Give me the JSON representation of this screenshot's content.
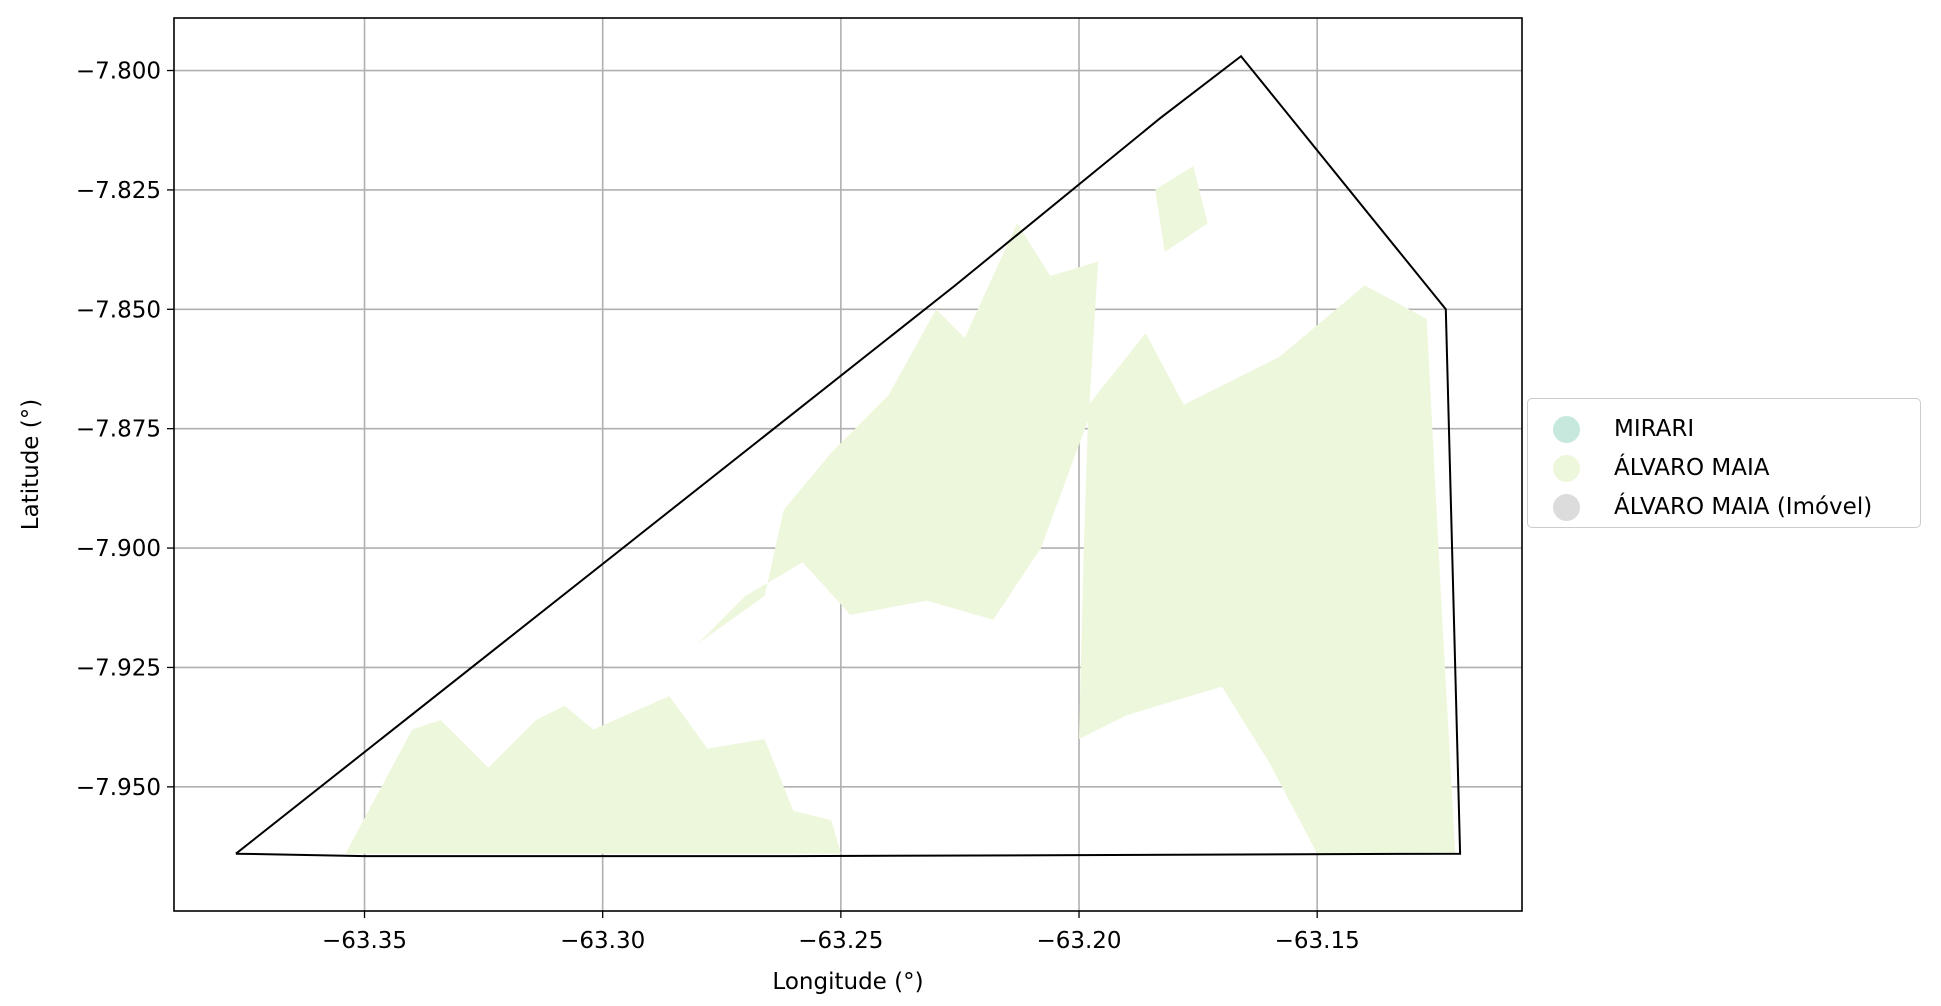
{
  "chart_data": {
    "type": "map",
    "xlabel": "Longitude (°)",
    "ylabel": "Latitude (°)",
    "xlim": [
      -63.39,
      -63.107
    ],
    "ylim": [
      -7.976,
      -7.789
    ],
    "x_ticks": [
      -63.35,
      -63.3,
      -63.25,
      -63.2,
      -63.15
    ],
    "x_tick_labels": [
      "−63.35",
      "−63.30",
      "−63.25",
      "−63.20",
      "−63.15"
    ],
    "y_ticks": [
      -7.8,
      -7.825,
      -7.85,
      -7.875,
      -7.9,
      -7.925,
      -7.95
    ],
    "y_tick_labels": [
      "−7.800",
      "−7.825",
      "−7.850",
      "−7.875",
      "−7.900",
      "−7.925",
      "−7.950"
    ],
    "grid": true,
    "legend_position": "center-right, outside plot",
    "legend": [
      {
        "label": "MIRARI",
        "color": "#c7e9dd"
      },
      {
        "label": "ÁLVARO MAIA",
        "color": "#edf7dc"
      },
      {
        "label": "ÁLVARO MAIA (Imóvel)",
        "color": "#dcdcdc"
      }
    ],
    "boundary": [
      [
        -63.377,
        -7.964
      ],
      [
        -63.35,
        -7.9645
      ],
      [
        -63.26,
        -7.9645
      ],
      [
        -63.2,
        -7.9643
      ],
      [
        -63.12,
        -7.964
      ],
      [
        -63.123,
        -7.85
      ],
      [
        -63.166,
        -7.797
      ],
      [
        -63.183,
        -7.81
      ],
      [
        -63.226,
        -7.845
      ],
      [
        -63.377,
        -7.964
      ]
    ],
    "regions": [
      [
        [
          -63.354,
          -7.964
        ],
        [
          -63.34,
          -7.938
        ],
        [
          -63.334,
          -7.936
        ],
        [
          -63.324,
          -7.946
        ],
        [
          -63.314,
          -7.936
        ],
        [
          -63.308,
          -7.933
        ],
        [
          -63.302,
          -7.938
        ],
        [
          -63.286,
          -7.931
        ],
        [
          -63.278,
          -7.942
        ],
        [
          -63.266,
          -7.94
        ],
        [
          -63.26,
          -7.955
        ],
        [
          -63.252,
          -7.957
        ],
        [
          -63.25,
          -7.964
        ]
      ],
      [
        [
          -63.28,
          -7.92
        ],
        [
          -63.266,
          -7.91
        ],
        [
          -63.262,
          -7.892
        ],
        [
          -63.252,
          -7.88
        ],
        [
          -63.24,
          -7.868
        ],
        [
          -63.23,
          -7.85
        ],
        [
          -63.224,
          -7.856
        ],
        [
          -63.213,
          -7.832
        ],
        [
          -63.206,
          -7.843
        ],
        [
          -63.196,
          -7.84
        ],
        [
          -63.198,
          -7.873
        ],
        [
          -63.208,
          -7.9
        ],
        [
          -63.218,
          -7.915
        ],
        [
          -63.232,
          -7.911
        ],
        [
          -63.248,
          -7.914
        ],
        [
          -63.258,
          -7.903
        ],
        [
          -63.27,
          -7.91
        ],
        [
          -63.28,
          -7.92
        ]
      ],
      [
        [
          -63.2,
          -7.94
        ],
        [
          -63.199,
          -7.9
        ],
        [
          -63.198,
          -7.87
        ],
        [
          -63.186,
          -7.855
        ],
        [
          -63.178,
          -7.87
        ],
        [
          -63.158,
          -7.86
        ],
        [
          -63.14,
          -7.845
        ],
        [
          -63.127,
          -7.852
        ],
        [
          -63.124,
          -7.91
        ],
        [
          -63.121,
          -7.964
        ],
        [
          -63.15,
          -7.964
        ],
        [
          -63.16,
          -7.945
        ],
        [
          -63.17,
          -7.929
        ],
        [
          -63.19,
          -7.935
        ],
        [
          -63.2,
          -7.94
        ]
      ],
      [
        [
          -63.184,
          -7.825
        ],
        [
          -63.176,
          -7.82
        ],
        [
          -63.173,
          -7.832
        ],
        [
          -63.182,
          -7.838
        ]
      ]
    ]
  }
}
